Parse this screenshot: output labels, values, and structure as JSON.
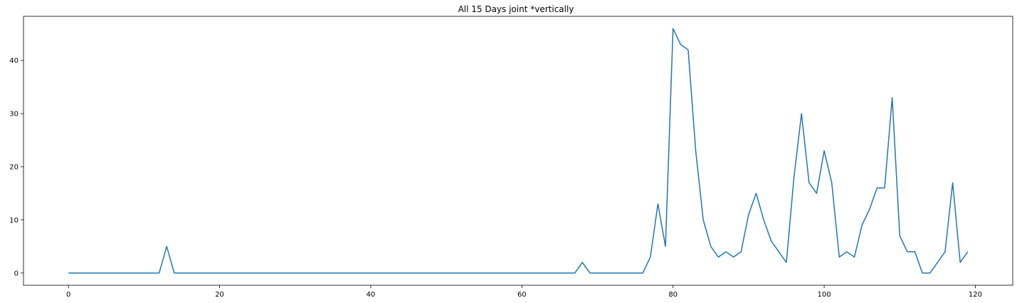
{
  "chart_data": {
    "type": "line",
    "title": "All 15 Days joint *vertically",
    "xlabel": "",
    "ylabel": "",
    "xlim": [
      -5.95,
      124.95
    ],
    "ylim": [
      -2.3,
      48.3
    ],
    "xticks": [
      0,
      20,
      40,
      60,
      80,
      100,
      120
    ],
    "yticks": [
      0,
      10,
      20,
      30,
      40
    ],
    "grid": false,
    "line_color": "#1f77b4",
    "series": [
      {
        "x": [
          0,
          1,
          2,
          3,
          4,
          5,
          6,
          7,
          8,
          9,
          10,
          11,
          12,
          13,
          14,
          15,
          16,
          17,
          18,
          19,
          20,
          21,
          22,
          23,
          24,
          25,
          26,
          27,
          28,
          29,
          30,
          31,
          32,
          33,
          34,
          35,
          36,
          37,
          38,
          39,
          40,
          41,
          42,
          43,
          44,
          45,
          46,
          47,
          48,
          49,
          50,
          51,
          52,
          53,
          54,
          55,
          56,
          57,
          58,
          59,
          60,
          61,
          62,
          63,
          64,
          65,
          66,
          67,
          68,
          69,
          70,
          71,
          72,
          73,
          74,
          75,
          76,
          77,
          78,
          79,
          80,
          81,
          82,
          83,
          84,
          85,
          86,
          87,
          88,
          89,
          90,
          91,
          92,
          93,
          94,
          95,
          96,
          97,
          98,
          99,
          100,
          101,
          102,
          103,
          104,
          105,
          106,
          107,
          108,
          109,
          110,
          111,
          112,
          113,
          114,
          115,
          116,
          117,
          118,
          119
        ],
        "values": [
          0,
          0,
          0,
          0,
          0,
          0,
          0,
          0,
          0,
          0,
          0,
          0,
          0,
          5,
          0,
          0,
          0,
          0,
          0,
          0,
          0,
          0,
          0,
          0,
          0,
          0,
          0,
          0,
          0,
          0,
          0,
          0,
          0,
          0,
          0,
          0,
          0,
          0,
          0,
          0,
          0,
          0,
          0,
          0,
          0,
          0,
          0,
          0,
          0,
          0,
          0,
          0,
          0,
          0,
          0,
          0,
          0,
          0,
          0,
          0,
          0,
          0,
          0,
          0,
          0,
          0,
          0,
          0,
          2,
          0,
          0,
          0,
          0,
          0,
          0,
          0,
          0,
          3,
          13,
          5,
          46,
          43,
          42,
          23,
          10,
          5,
          3,
          4,
          3,
          4,
          11,
          15,
          10,
          6,
          4,
          2,
          18,
          30,
          17,
          15,
          23,
          17,
          3,
          4,
          3,
          9,
          12,
          16,
          16,
          33,
          7,
          4,
          4,
          0,
          0,
          2,
          4,
          17,
          2,
          4
        ]
      }
    ]
  }
}
